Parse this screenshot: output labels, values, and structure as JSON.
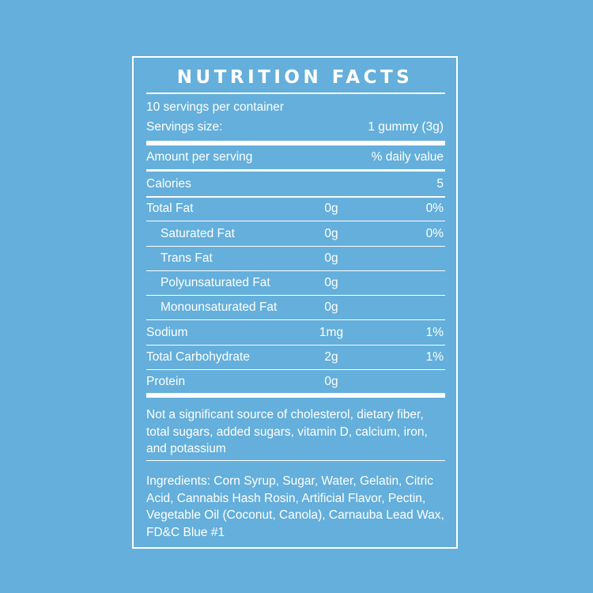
{
  "panel": {
    "title": "NUTRITION FACTS",
    "servings_per_container": "10 servings per container",
    "serving_size_label": "Servings size:",
    "serving_size_value": "1 gummy (3g)",
    "amount_per_serving": "Amount per serving",
    "daily_value_header": "% daily value",
    "calories_label": "Calories",
    "calories_value": "5"
  },
  "nutrients": [
    {
      "name": "Total Fat",
      "amount": "0g",
      "dv": "0%"
    },
    {
      "name": "Saturated Fat",
      "amount": "0g",
      "dv": "0%"
    },
    {
      "name": "Trans Fat",
      "amount": "0g",
      "dv": ""
    },
    {
      "name": "Polyunsaturated Fat",
      "amount": "0g",
      "dv": ""
    },
    {
      "name": "Monounsaturated Fat",
      "amount": "0g",
      "dv": ""
    },
    {
      "name": "Sodium",
      "amount": "1mg",
      "dv": "1%"
    },
    {
      "name": "Total Carbohydrate",
      "amount": "2g",
      "dv": "1%"
    },
    {
      "name": "Protein",
      "amount": "0g",
      "dv": ""
    }
  ],
  "footnote": "Not a significant source of cholesterol, dietary fiber, total sugars, added sugars, vitamin D, calcium, iron, and potassium",
  "ingredients": "Ingredients: Corn Syrup, Sugar, Water, Gelatin, Citric Acid, Cannabis Hash Rosin, Artificial Flavor, Pectin, Vegetable Oil (Coconut, Canola), Carnauba Lead Wax, FD&C Blue #1"
}
